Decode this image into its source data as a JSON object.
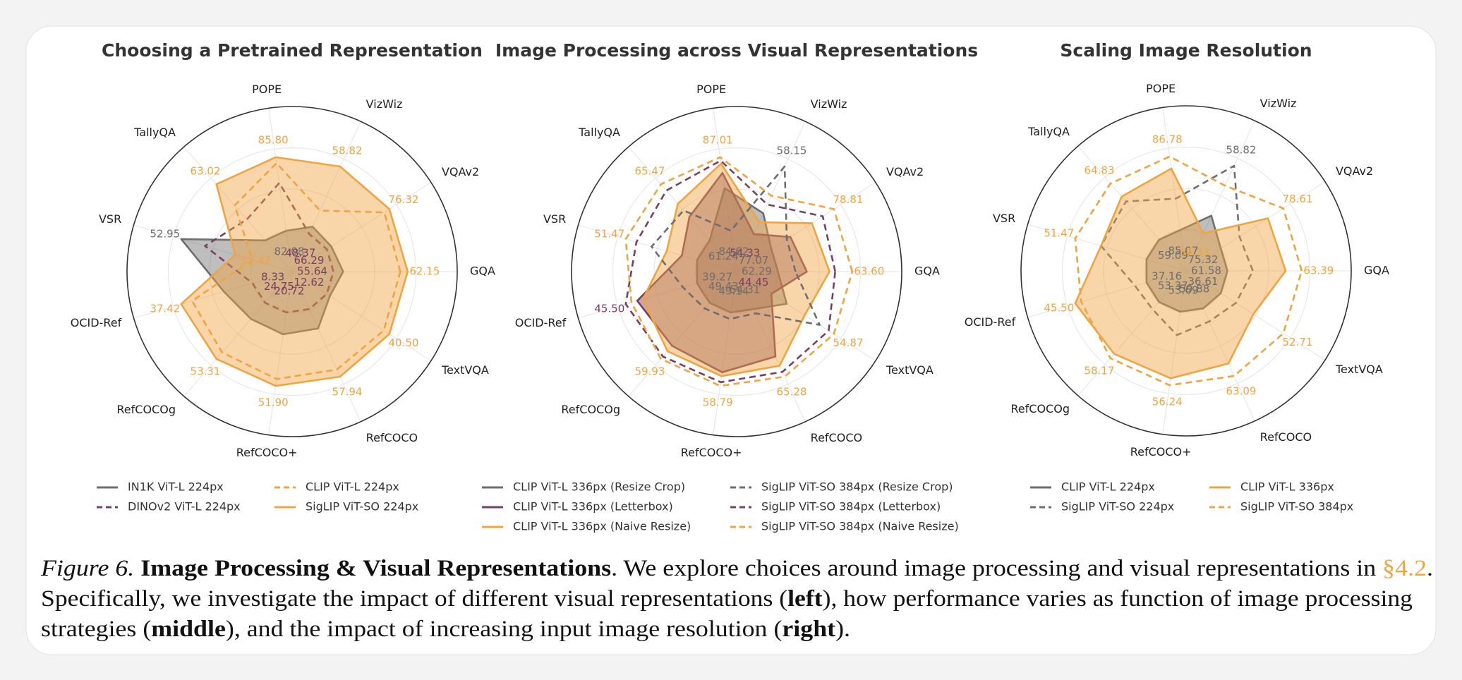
{
  "chart_data": [
    {
      "type": "radar",
      "title": "Choosing a Pretrained Representation",
      "categories": [
        "GQA",
        "VQAv2",
        "VizWiz",
        "POPE",
        "TallyQA",
        "VSR",
        "OCID-Ref",
        "RefCOCOg",
        "RefCOCO+",
        "RefCOCO",
        "TextVQA"
      ],
      "series": [
        {
          "name": "IN1K ViT-L 224px",
          "color": "#6e6e6e",
          "dash": false,
          "fill": true,
          "values": [
            56.5,
            67,
            49.5,
            82.08,
            55,
            52.95,
            20,
            33,
            30,
            38,
            14
          ],
          "value_labels": [
            null,
            null,
            null,
            "82.08",
            null,
            "52.95",
            null,
            null,
            null,
            null,
            null
          ]
        },
        {
          "name": "DINOv2 ViT-L 224px",
          "color": "#7b3f61",
          "dash": true,
          "fill": false,
          "values": [
            55.64,
            66.29,
            48.37,
            84.5,
            58,
            52.3,
            8.33,
            24.75,
            20.72,
            30,
            12.62
          ],
          "value_labels": [
            "55.64",
            "66.29",
            "48.37",
            null,
            null,
            null,
            "8.33",
            "24.75",
            "20.72",
            null,
            "12.62"
          ]
        },
        {
          "name": "CLIP ViT-L 224px",
          "color": "#f0a440",
          "dash": true,
          "fill": false,
          "values": [
            61.5,
            75.5,
            52,
            85.5,
            60,
            51.0,
            33,
            50,
            49,
            55,
            38
          ],
          "value_labels": [
            null,
            null,
            null,
            null,
            null,
            null,
            null,
            null,
            null,
            null,
            null
          ]
        },
        {
          "name": "SigLIP ViT-SO 224px",
          "color": "#f0a440",
          "dash": false,
          "fill": true,
          "values": [
            62.15,
            76.32,
            58.82,
            85.8,
            63.02,
            51.47,
            37.42,
            53.31,
            51.9,
            57.94,
            40.5
          ],
          "value_labels": [
            "62.15",
            "76.32",
            "58.82",
            "85.80",
            "63.02",
            "51.47",
            "37.42",
            "53.31",
            "51.90",
            "57.94",
            "40.50"
          ]
        }
      ]
    },
    {
      "type": "radar",
      "title": "Image Processing across Visual Representations",
      "categories": [
        "GQA",
        "VQAv2",
        "VizWiz",
        "POPE",
        "TallyQA",
        "VSR",
        "OCID-Ref",
        "RefCOCOg",
        "RefCOCO+",
        "RefCOCO",
        "TextVQA"
      ],
      "series": [
        {
          "name": "CLIP ViT-L 336px (Resize Crop)",
          "color": "#6e6e6e",
          "dash": false,
          "fill": true,
          "values": [
            62.29,
            77.07,
            55.5,
            86.0,
            61.24,
            51.0,
            39.27,
            49.43,
            49.14,
            54.31,
            47.0
          ],
          "value_labels": [
            "62.29",
            "77.07",
            null,
            null,
            "61.24",
            null,
            "39.27",
            "49.43",
            "49.14",
            "54.31",
            null
          ]
        },
        {
          "name": "CLIP ViT-L 336px (Letterbox)",
          "color": "#7b3f61",
          "dash": false,
          "fill": true,
          "values": [
            62.8,
            77.6,
            54.33,
            86.5,
            63.0,
            51.1,
            44.5,
            57.5,
            57.0,
            62.0,
            44.45
          ],
          "value_labels": [
            null,
            null,
            "54.33",
            null,
            null,
            null,
            null,
            null,
            null,
            null,
            "44.45"
          ]
        },
        {
          "name": "CLIP ViT-L 336px (Naive Resize)",
          "color": "#f0a440",
          "dash": false,
          "fill": true,
          "values": [
            63.2,
            78.2,
            55.0,
            86.8,
            64.0,
            51.2,
            44.0,
            58.5,
            57.5,
            63.5,
            50.0
          ],
          "value_labels": [
            null,
            null,
            null,
            null,
            null,
            null,
            null,
            null,
            null,
            null,
            null
          ]
        },
        {
          "name": "SigLIP ViT-SO 384px (Resize Crop)",
          "color": "#6e6e6e",
          "dash": true,
          "fill": false,
          "values": [
            62.6,
            77.5,
            58.15,
            84.62,
            63.5,
            51.3,
            40.5,
            50.5,
            50.0,
            55.0,
            52.5
          ],
          "value_labels": [
            null,
            null,
            "58.15",
            "84.62",
            null,
            null,
            null,
            null,
            null,
            null,
            null
          ]
        },
        {
          "name": "SigLIP ViT-SO 384px (Letterbox)",
          "color": "#7b3f61",
          "dash": true,
          "fill": false,
          "values": [
            63.3,
            78.5,
            56.0,
            86.9,
            65.0,
            51.4,
            45.5,
            59.5,
            58.3,
            64.5,
            54.0
          ],
          "value_labels": [
            null,
            null,
            null,
            null,
            null,
            null,
            "45.50",
            null,
            null,
            null,
            null
          ]
        },
        {
          "name": "SigLIP ViT-SO 384px (Naive Resize)",
          "color": "#f0a440",
          "dash": true,
          "fill": false,
          "values": [
            63.6,
            78.81,
            56.5,
            87.01,
            65.47,
            51.47,
            45.0,
            59.93,
            58.79,
            65.28,
            54.87
          ],
          "value_labels": [
            "63.60",
            "78.81",
            null,
            "87.01",
            "65.47",
            "51.47",
            null,
            "59.93",
            "58.79",
            "65.28",
            "54.87"
          ]
        }
      ]
    },
    {
      "type": "radar",
      "title": "Scaling Image Resolution",
      "categories": [
        "GQA",
        "VQAv2",
        "VizWiz",
        "POPE",
        "TallyQA",
        "VSR",
        "OCID-Ref",
        "RefCOCOg",
        "RefCOCO+",
        "RefCOCO",
        "TextVQA"
      ],
      "series": [
        {
          "name": "CLIP ViT-L 224px",
          "color": "#6e6e6e",
          "dash": false,
          "fill": true,
          "values": [
            61.58,
            75.32,
            55.5,
            85.07,
            59.09,
            51.0,
            37.16,
            53.37,
            53.69,
            59.88,
            36.61
          ],
          "value_labels": [
            "61.58",
            "75.32",
            null,
            "85.07",
            "59.09",
            null,
            "37.16",
            "53.37",
            "53.69",
            "59.88",
            "36.61"
          ]
        },
        {
          "name": "SigLIP ViT-SO 224px",
          "color": "#6e6e6e",
          "dash": true,
          "fill": false,
          "values": [
            62.2,
            76.3,
            58.82,
            85.8,
            63.0,
            51.3,
            38.5,
            54.0,
            54.5,
            60.5,
            40.5
          ],
          "value_labels": [
            null,
            null,
            "58.82",
            null,
            null,
            null,
            null,
            null,
            null,
            null,
            null
          ]
        },
        {
          "name": "CLIP ViT-L 336px",
          "color": "#f0a440",
          "dash": false,
          "fill": true,
          "values": [
            63.0,
            77.8,
            54.33,
            86.5,
            63.5,
            51.3,
            45.5,
            57.8,
            56.0,
            62.5,
            45.0
          ],
          "value_labels": [
            null,
            null,
            "54.33",
            null,
            null,
            null,
            "45.50",
            null,
            null,
            null,
            null
          ]
        },
        {
          "name": "SigLIP ViT-SO 384px",
          "color": "#f0a440",
          "dash": true,
          "fill": false,
          "values": [
            63.39,
            78.61,
            57.5,
            86.78,
            64.83,
            51.47,
            44.8,
            58.17,
            56.24,
            63.09,
            52.71
          ],
          "value_labels": [
            "63.39",
            "78.61",
            null,
            "86.78",
            "64.83",
            "51.47",
            null,
            "58.17",
            "56.24",
            "63.09",
            "52.71"
          ]
        }
      ]
    }
  ],
  "caption": [
    [
      {
        "text": "Figure 6.",
        "style": "italic"
      },
      {
        "text": " Image Processing & Visual Representations",
        "style": "bold"
      },
      {
        "text": ". We explore choices around image processing and visual representations in ",
        "style": "plain"
      },
      {
        "text": "§4.2",
        "style": "link"
      },
      {
        "text": ".",
        "style": "plain"
      }
    ],
    [
      {
        "text": "Specifically, we investigate the impact of different visual representations (",
        "style": "plain"
      },
      {
        "text": "left",
        "style": "bold"
      },
      {
        "text": "), how performance varies as function of image processing",
        "style": "plain"
      }
    ],
    [
      {
        "text": "strategies (",
        "style": "plain"
      },
      {
        "text": "middle",
        "style": "bold"
      },
      {
        "text": "), and the impact of increasing input image resolution (",
        "style": "plain"
      },
      {
        "text": "right",
        "style": "bold"
      },
      {
        "text": ").",
        "style": "plain"
      }
    ]
  ]
}
